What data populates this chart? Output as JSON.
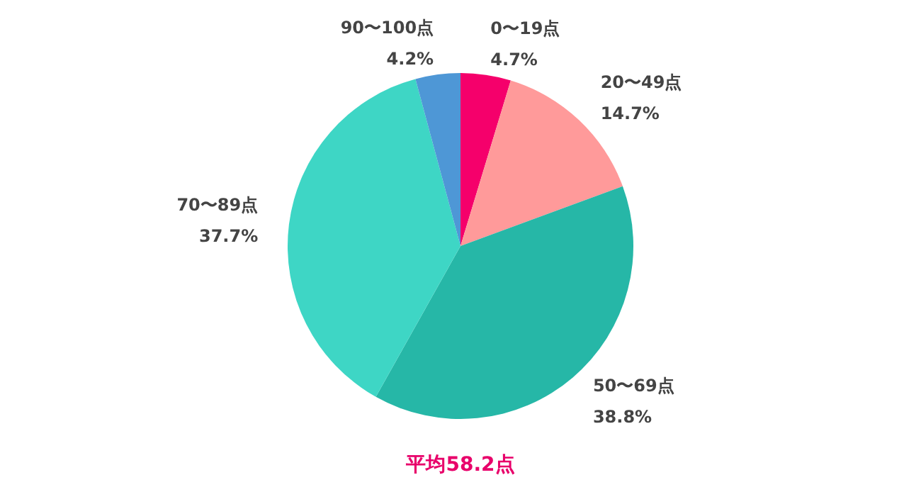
{
  "chart_data": {
    "type": "pie",
    "categories": [
      "0〜19点",
      "20〜49点",
      "50〜69点",
      "70〜89点",
      "90〜100点"
    ],
    "values": [
      4.7,
      14.7,
      38.8,
      37.7,
      4.2
    ],
    "value_labels": [
      "4.7%",
      "14.7%",
      "38.8%",
      "37.7%",
      "4.2%"
    ],
    "colors": [
      "#f5006b",
      "#ff9a9a",
      "#26b7a7",
      "#3ed6c5",
      "#4e97d6"
    ],
    "annotations": [
      "平均58.2点"
    ]
  }
}
